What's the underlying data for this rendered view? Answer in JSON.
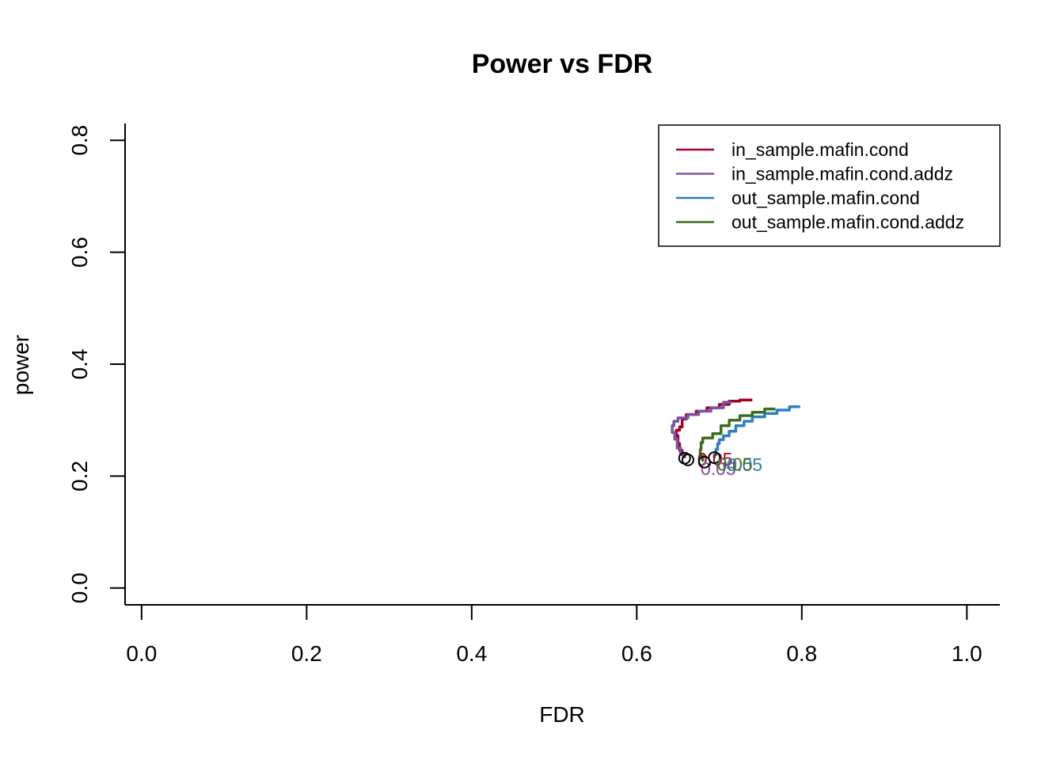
{
  "chart_data": {
    "type": "line",
    "title": "Power vs FDR",
    "xlabel": "FDR",
    "ylabel": "power",
    "xlim": [
      -0.02,
      1.04
    ],
    "ylim": [
      -0.03,
      0.83
    ],
    "xticks": [
      "0.0",
      "0.2",
      "0.4",
      "0.6",
      "0.8",
      "1.0"
    ],
    "yticks": [
      "0.0",
      "0.2",
      "0.4",
      "0.6",
      "0.8"
    ],
    "grid": false,
    "legend_position": "top-right",
    "series": [
      {
        "name": "in_sample.mafin.cond",
        "color": "#A50026",
        "points": [
          [
            0.74,
            0.336
          ],
          [
            0.725,
            0.334
          ],
          [
            0.712,
            0.328
          ],
          [
            0.7,
            0.322
          ],
          [
            0.685,
            0.316
          ],
          [
            0.672,
            0.31
          ],
          [
            0.66,
            0.302
          ],
          [
            0.655,
            0.288
          ],
          [
            0.652,
            0.282
          ],
          [
            0.648,
            0.272
          ],
          [
            0.65,
            0.258
          ],
          [
            0.652,
            0.246
          ],
          [
            0.655,
            0.238
          ],
          [
            0.658,
            0.232
          ]
        ],
        "marker": [
          0.658,
          0.232
        ],
        "marker_label": "0.05"
      },
      {
        "name": "in_sample.mafin.cond.addz",
        "color": "#7B52A0",
        "points": [
          [
            0.715,
            0.332
          ],
          [
            0.705,
            0.322
          ],
          [
            0.69,
            0.316
          ],
          [
            0.675,
            0.31
          ],
          [
            0.662,
            0.304
          ],
          [
            0.65,
            0.298
          ],
          [
            0.645,
            0.29
          ],
          [
            0.643,
            0.278
          ],
          [
            0.646,
            0.266
          ],
          [
            0.649,
            0.25
          ],
          [
            0.653,
            0.24
          ],
          [
            0.657,
            0.232
          ]
        ],
        "marker": [
          0.662,
          0.229
        ],
        "marker_label": "0.05"
      },
      {
        "name": "out_sample.mafin.cond",
        "color": "#2E7EBE",
        "points": [
          [
            0.798,
            0.324
          ],
          [
            0.785,
            0.318
          ],
          [
            0.77,
            0.312
          ],
          [
            0.755,
            0.306
          ],
          [
            0.74,
            0.298
          ],
          [
            0.73,
            0.29
          ],
          [
            0.72,
            0.28
          ],
          [
            0.712,
            0.272
          ],
          [
            0.705,
            0.265
          ],
          [
            0.7,
            0.258
          ],
          [
            0.698,
            0.248
          ],
          [
            0.696,
            0.238
          ],
          [
            0.694,
            0.232
          ]
        ],
        "marker": [
          0.694,
          0.233
        ],
        "marker_label": "0.05"
      },
      {
        "name": "out_sample.mafin.cond.addz",
        "color": "#3C6E1F",
        "points": [
          [
            0.768,
            0.32
          ],
          [
            0.755,
            0.314
          ],
          [
            0.74,
            0.308
          ],
          [
            0.725,
            0.3
          ],
          [
            0.712,
            0.29
          ],
          [
            0.702,
            0.276
          ],
          [
            0.692,
            0.268
          ],
          [
            0.68,
            0.26
          ],
          [
            0.678,
            0.248
          ],
          [
            0.677,
            0.236
          ],
          [
            0.68,
            0.226
          ]
        ],
        "marker": [
          0.682,
          0.225
        ],
        "marker_label": "0.05"
      }
    ]
  }
}
